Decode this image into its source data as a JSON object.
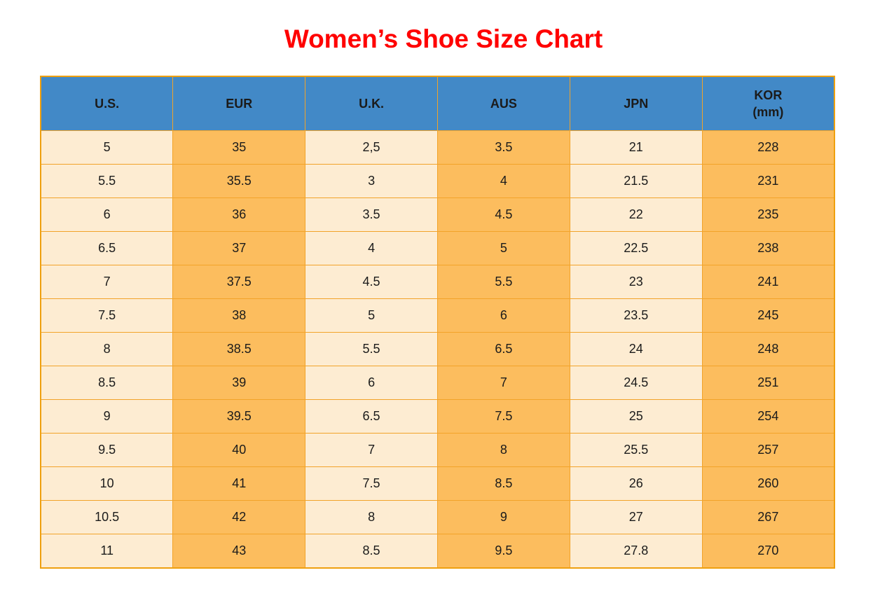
{
  "title": "Women’s Shoe Size Chart",
  "colors": {
    "title_red": "#ff0000",
    "header_blue": "#4289c7",
    "cream_cell": "#fdecd2",
    "orange_cell": "#fcbd5e",
    "grid_orange": "#f2a329",
    "text_black": "#1b1b1b"
  },
  "table": {
    "headers": [
      {
        "label": "U.S."
      },
      {
        "label": "EUR"
      },
      {
        "label": "U.K."
      },
      {
        "label": "AUS"
      },
      {
        "label": "JPN"
      },
      {
        "label": "KOR",
        "sub": "(mm)"
      }
    ]
  },
  "chart_data": {
    "type": "table",
    "title": "Women’s Shoe Size Chart",
    "columns": [
      "U.S.",
      "EUR",
      "U.K.",
      "AUS",
      "JPN",
      "KOR (mm)"
    ],
    "rows": [
      [
        "5",
        "35",
        "2,5",
        "3.5",
        "21",
        "228"
      ],
      [
        "5.5",
        "35.5",
        "3",
        "4",
        "21.5",
        "231"
      ],
      [
        "6",
        "36",
        "3.5",
        "4.5",
        "22",
        "235"
      ],
      [
        "6.5",
        "37",
        "4",
        "5",
        "22.5",
        "238"
      ],
      [
        "7",
        "37.5",
        "4.5",
        "5.5",
        "23",
        "241"
      ],
      [
        "7.5",
        "38",
        "5",
        "6",
        "23.5",
        "245"
      ],
      [
        "8",
        "38.5",
        "5.5",
        "6.5",
        "24",
        "248"
      ],
      [
        "8.5",
        "39",
        "6",
        "7",
        "24.5",
        "251"
      ],
      [
        "9",
        "39.5",
        "6.5",
        "7.5",
        "25",
        "254"
      ],
      [
        "9.5",
        "40",
        "7",
        "8",
        "25.5",
        "257"
      ],
      [
        "10",
        "41",
        "7.5",
        "8.5",
        "26",
        "260"
      ],
      [
        "10.5",
        "42",
        "8",
        "9",
        "27",
        "267"
      ],
      [
        "11",
        "43",
        "8.5",
        "9.5",
        "27.8",
        "270"
      ]
    ]
  }
}
